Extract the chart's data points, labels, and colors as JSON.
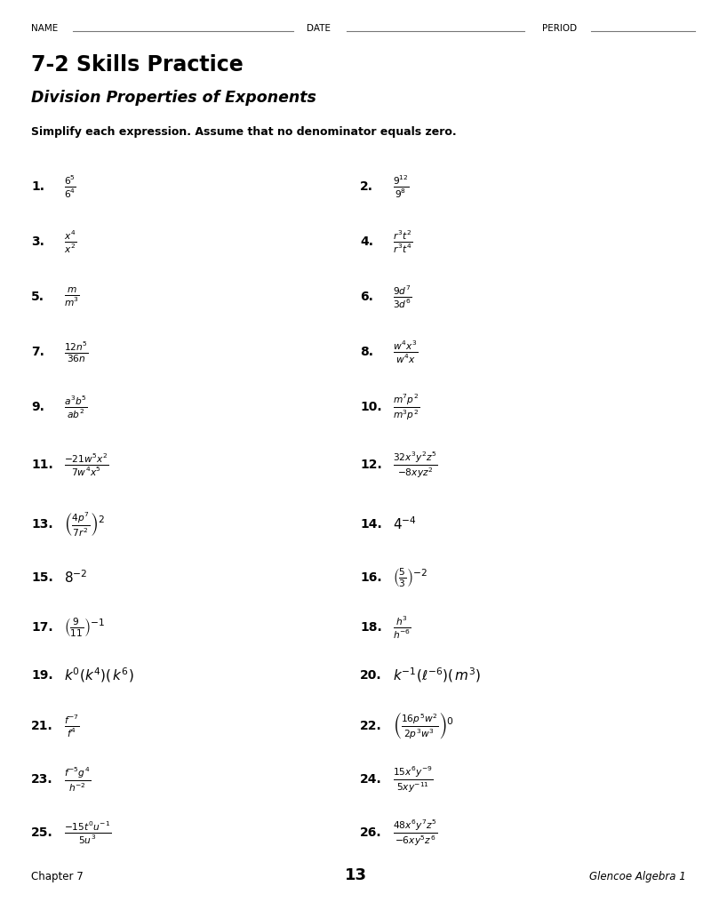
{
  "bg_color": "#ffffff",
  "title1": "7-2 Skills Practice",
  "title2": "Division Properties of Exponents",
  "instructions": "Simplify each expression. Assume that no denominator equals zero.",
  "header_name": "NAME",
  "header_date": "DATE",
  "header_period": "PERIOD",
  "footer_left": "Chapter 7",
  "footer_center": "13",
  "footer_right": "Glencoe Algebra 1",
  "problems": [
    {
      "num": "1.",
      "expr": "$\\frac{6^5}{6^4}$",
      "col": 0,
      "row": 0
    },
    {
      "num": "2.",
      "expr": "$\\frac{9^{12}}{9^8}$",
      "col": 1,
      "row": 0
    },
    {
      "num": "3.",
      "expr": "$\\frac{x^4}{x^2}$",
      "col": 0,
      "row": 1
    },
    {
      "num": "4.",
      "expr": "$\\frac{r^3t^2}{r^3t^4}$",
      "col": 1,
      "row": 1
    },
    {
      "num": "5.",
      "expr": "$\\frac{m}{m^3}$",
      "col": 0,
      "row": 2
    },
    {
      "num": "6.",
      "expr": "$\\frac{9d^7}{3d^6}$",
      "col": 1,
      "row": 2
    },
    {
      "num": "7.",
      "expr": "$\\frac{12n^5}{36n}$",
      "col": 0,
      "row": 3
    },
    {
      "num": "8.",
      "expr": "$\\frac{w^4x^3}{w^4x}$",
      "col": 1,
      "row": 3
    },
    {
      "num": "9.",
      "expr": "$\\frac{a^3b^5}{ab^2}$",
      "col": 0,
      "row": 4
    },
    {
      "num": "10.",
      "expr": "$\\frac{m^7p^2}{m^3p^2}$",
      "col": 1,
      "row": 4
    },
    {
      "num": "11.",
      "expr": "$\\frac{-21w^5x^2}{7w^4x^5}$",
      "col": 0,
      "row": 5
    },
    {
      "num": "12.",
      "expr": "$\\frac{32x^3y^2z^5}{-8xyz^2}$",
      "col": 1,
      "row": 5
    },
    {
      "num": "13.",
      "expr": "$\\left(\\frac{4p^7}{7r^2}\\right)^2$",
      "col": 0,
      "row": 6
    },
    {
      "num": "14.",
      "expr": "$4^{-4}$",
      "col": 1,
      "row": 6
    },
    {
      "num": "15.",
      "expr": "$8^{-2}$",
      "col": 0,
      "row": 7
    },
    {
      "num": "16.",
      "expr": "$\\left(\\frac{5}{3}\\right)^{-2}$",
      "col": 1,
      "row": 7
    },
    {
      "num": "17.",
      "expr": "$\\left(\\frac{9}{11}\\right)^{-1}$",
      "col": 0,
      "row": 8
    },
    {
      "num": "18.",
      "expr": "$\\frac{h^3}{h^{-6}}$",
      "col": 1,
      "row": 8
    },
    {
      "num": "19.",
      "expr": "$k^0(k^4)(\\, k^6)$",
      "col": 0,
      "row": 9
    },
    {
      "num": "20.",
      "expr": "$k^{-1}(\\ell^{-6})(\\, m^3)$",
      "col": 1,
      "row": 9
    },
    {
      "num": "21.",
      "expr": "$\\frac{f^{-7}}{f^4}$",
      "col": 0,
      "row": 10
    },
    {
      "num": "22.",
      "expr": "$\\left(\\frac{16p^5w^2}{2p^3w^3}\\right)^0$",
      "col": 1,
      "row": 10
    },
    {
      "num": "23.",
      "expr": "$\\frac{f^{-5}g^4}{h^{-2}}$",
      "col": 0,
      "row": 11
    },
    {
      "num": "24.",
      "expr": "$\\frac{15x^6y^{-9}}{5xy^{-11}}$",
      "col": 1,
      "row": 11
    },
    {
      "num": "25.",
      "expr": "$\\frac{-15t^0u^{-1}}{5u^3}$",
      "col": 0,
      "row": 12
    },
    {
      "num": "26.",
      "expr": "$\\frac{48x^6y^7z^5}{-6xy^5z^6}$",
      "col": 1,
      "row": 12
    }
  ]
}
